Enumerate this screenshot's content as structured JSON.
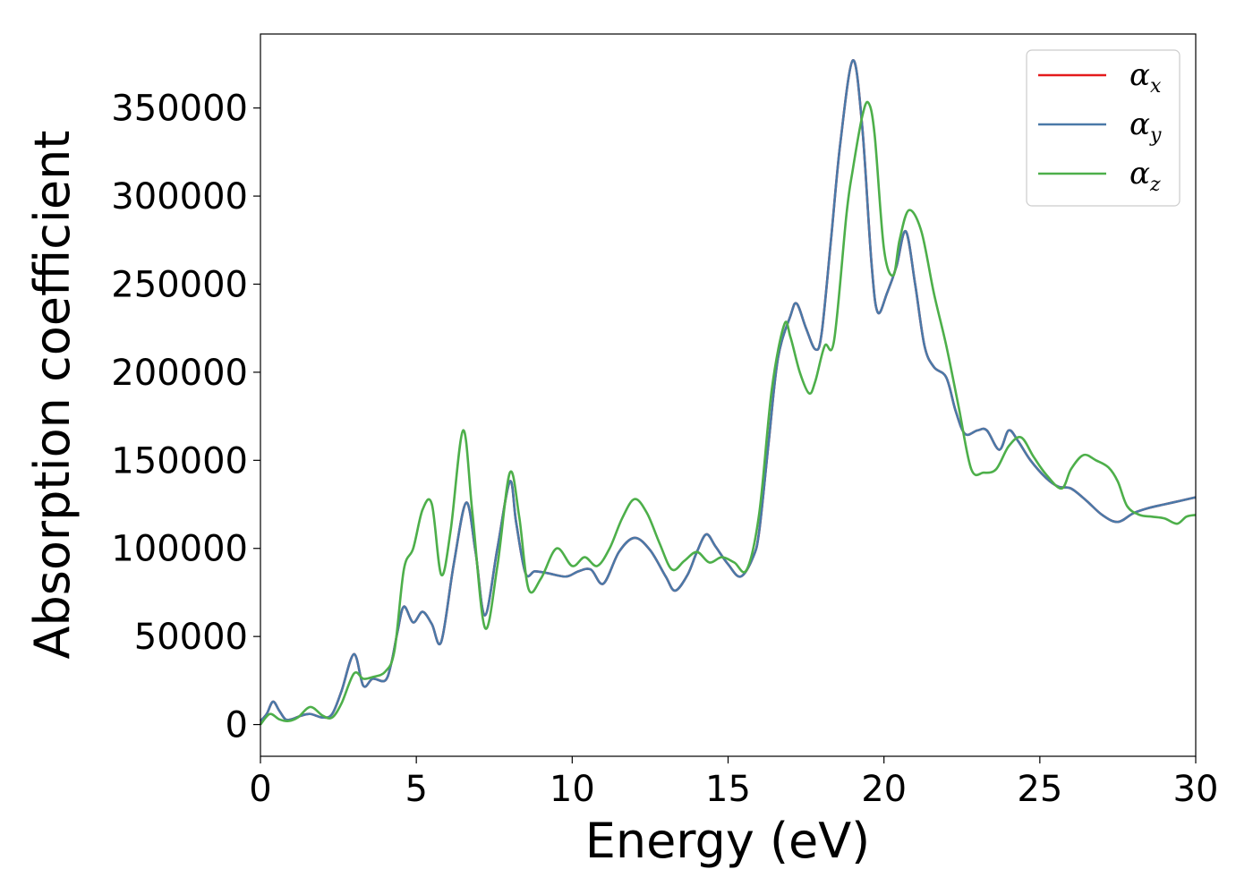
{
  "chart_data": {
    "type": "line",
    "xlabel": "Energy (eV)",
    "ylabel": "Absorption coefficient",
    "xlim": [
      0,
      30
    ],
    "ylim": [
      -18000,
      392000
    ],
    "xticks": [
      0,
      5,
      10,
      15,
      20,
      25,
      30
    ],
    "yticks": [
      0,
      50000,
      100000,
      150000,
      200000,
      250000,
      300000,
      350000
    ],
    "grid": false,
    "legend_position": "top-right",
    "series": [
      {
        "name": "α",
        "subscript": "x",
        "color": "#e41a1c",
        "x": [
          0,
          0.2,
          0.4,
          0.6,
          0.8,
          1.0,
          1.3,
          1.6,
          2.0,
          2.3,
          2.6,
          3.0,
          3.3,
          3.6,
          4.0,
          4.2,
          4.4,
          4.6,
          4.9,
          5.2,
          5.5,
          5.8,
          6.2,
          6.6,
          6.9,
          7.2,
          7.6,
          8.0,
          8.2,
          8.5,
          8.8,
          9.2,
          9.8,
          10.2,
          10.6,
          11.0,
          11.5,
          12.0,
          12.5,
          13.0,
          13.3,
          13.7,
          14.0,
          14.3,
          14.6,
          15.0,
          15.4,
          15.8,
          16.0,
          16.3,
          16.6,
          17.0,
          17.2,
          17.5,
          17.8,
          18.0,
          18.3,
          18.6,
          19.0,
          19.3,
          19.6,
          19.8,
          20.1,
          20.4,
          20.7,
          21.0,
          21.3,
          21.6,
          22.0,
          22.3,
          22.6,
          23.0,
          23.3,
          23.7,
          24.0,
          24.3,
          24.7,
          25.2,
          25.6,
          26.0,
          26.5,
          27.0,
          27.5,
          28.0,
          28.5,
          29.0,
          29.5,
          30.0
        ],
        "y": [
          2000,
          6000,
          13000,
          8000,
          3000,
          3000,
          5000,
          6000,
          4000,
          6000,
          19000,
          40000,
          22000,
          26000,
          25000,
          35000,
          53000,
          67000,
          58000,
          64000,
          57000,
          47000,
          91000,
          126000,
          98000,
          62000,
          100000,
          138000,
          115000,
          86000,
          87000,
          86000,
          84000,
          87000,
          88000,
          80000,
          98000,
          106000,
          99000,
          84000,
          76000,
          85000,
          98000,
          108000,
          101000,
          91000,
          84000,
          95000,
          110000,
          160000,
          208000,
          232000,
          239000,
          225000,
          213000,
          222000,
          275000,
          330000,
          377000,
          340000,
          262000,
          234000,
          245000,
          260000,
          280000,
          250000,
          215000,
          203000,
          197000,
          178000,
          165000,
          167000,
          167000,
          156000,
          167000,
          161000,
          150000,
          140000,
          135000,
          134000,
          127000,
          119000,
          115000,
          120000,
          123000,
          125000,
          127000,
          129000
        ]
      },
      {
        "name": "α",
        "subscript": "y",
        "color": "#4a79a8",
        "x": [
          0,
          0.2,
          0.4,
          0.6,
          0.8,
          1.0,
          1.3,
          1.6,
          2.0,
          2.3,
          2.6,
          3.0,
          3.3,
          3.6,
          4.0,
          4.2,
          4.4,
          4.6,
          4.9,
          5.2,
          5.5,
          5.8,
          6.2,
          6.6,
          6.9,
          7.2,
          7.6,
          8.0,
          8.2,
          8.5,
          8.8,
          9.2,
          9.8,
          10.2,
          10.6,
          11.0,
          11.5,
          12.0,
          12.5,
          13.0,
          13.3,
          13.7,
          14.0,
          14.3,
          14.6,
          15.0,
          15.4,
          15.8,
          16.0,
          16.3,
          16.6,
          17.0,
          17.2,
          17.5,
          17.8,
          18.0,
          18.3,
          18.6,
          19.0,
          19.3,
          19.6,
          19.8,
          20.1,
          20.4,
          20.7,
          21.0,
          21.3,
          21.6,
          22.0,
          22.3,
          22.6,
          23.0,
          23.3,
          23.7,
          24.0,
          24.3,
          24.7,
          25.2,
          25.6,
          26.0,
          26.5,
          27.0,
          27.5,
          28.0,
          28.5,
          29.0,
          29.5,
          30.0
        ],
        "y": [
          2000,
          6000,
          13000,
          8000,
          3000,
          3000,
          5000,
          6000,
          4000,
          6000,
          19000,
          40000,
          22000,
          26000,
          25000,
          35000,
          53000,
          67000,
          58000,
          64000,
          57000,
          47000,
          91000,
          126000,
          98000,
          62000,
          100000,
          138000,
          115000,
          86000,
          87000,
          86000,
          84000,
          87000,
          88000,
          80000,
          98000,
          106000,
          99000,
          84000,
          76000,
          85000,
          98000,
          108000,
          101000,
          91000,
          84000,
          95000,
          110000,
          160000,
          208000,
          232000,
          239000,
          225000,
          213000,
          222000,
          275000,
          330000,
          377000,
          340000,
          262000,
          234000,
          245000,
          260000,
          280000,
          250000,
          215000,
          203000,
          197000,
          178000,
          165000,
          167000,
          167000,
          156000,
          167000,
          161000,
          150000,
          140000,
          135000,
          134000,
          127000,
          119000,
          115000,
          120000,
          123000,
          125000,
          127000,
          129000
        ]
      },
      {
        "name": "α",
        "subscript": "z",
        "color": "#4daf4a",
        "x": [
          0,
          0.3,
          0.6,
          0.9,
          1.2,
          1.6,
          2.0,
          2.3,
          2.6,
          3.0,
          3.3,
          3.6,
          4.0,
          4.3,
          4.6,
          4.9,
          5.2,
          5.5,
          5.8,
          6.1,
          6.5,
          6.8,
          7.2,
          7.6,
          8.0,
          8.3,
          8.6,
          9.0,
          9.5,
          10.0,
          10.4,
          10.8,
          11.2,
          11.6,
          12.0,
          12.4,
          12.8,
          13.2,
          13.6,
          14.0,
          14.4,
          14.8,
          15.2,
          15.6,
          16.0,
          16.4,
          16.8,
          17.0,
          17.3,
          17.6,
          17.8,
          18.1,
          18.4,
          18.8,
          19.0,
          19.3,
          19.5,
          19.7,
          20.0,
          20.3,
          20.5,
          20.8,
          21.2,
          21.6,
          22.0,
          22.4,
          22.8,
          23.2,
          23.6,
          24.0,
          24.4,
          24.8,
          25.2,
          25.7,
          26.0,
          26.4,
          26.8,
          27.2,
          27.5,
          27.8,
          28.2,
          28.6,
          29.0,
          29.4,
          29.7,
          30.0
        ],
        "y": [
          0,
          6000,
          3000,
          2000,
          4000,
          10000,
          5000,
          4000,
          12000,
          29000,
          26000,
          27000,
          30000,
          42000,
          88000,
          100000,
          122000,
          125000,
          85000,
          110000,
          167000,
          120000,
          55000,
          90000,
          143000,
          118000,
          77000,
          83000,
          100000,
          90000,
          95000,
          90000,
          100000,
          117000,
          128000,
          120000,
          103000,
          88000,
          93000,
          98000,
          92000,
          95000,
          92000,
          88000,
          120000,
          190000,
          227000,
          220000,
          200000,
          188000,
          195000,
          215000,
          218000,
          290000,
          315000,
          345000,
          353000,
          335000,
          270000,
          255000,
          275000,
          292000,
          280000,
          245000,
          215000,
          180000,
          145000,
          143000,
          145000,
          158000,
          163000,
          152000,
          142000,
          134000,
          145000,
          153000,
          150000,
          146000,
          138000,
          124000,
          119000,
          118000,
          117000,
          114000,
          118000,
          119000
        ]
      }
    ]
  }
}
